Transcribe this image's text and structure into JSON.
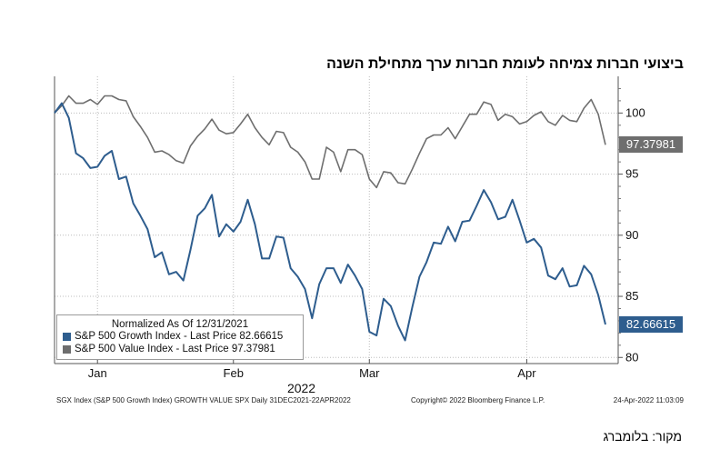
{
  "title": "ביצועי חברות צמיחה לעומת חברות ערך מתחילת השנה",
  "source": "מקור: בלומברג",
  "footer": {
    "left": "SGX Index (S&P 500 Growth Index) GROWTH VALUE SPX  Daily 31DEC2021-22APR2022",
    "center": "Copyright© 2022 Bloomberg Finance L.P.",
    "right": "24-Apr-2022 11:03:09"
  },
  "colors": {
    "growth": "#2e5d8e",
    "value": "#6e6e6e",
    "grid": "#bdbdbd"
  },
  "chart_data": {
    "type": "line",
    "xlabel": "2022",
    "ylabel": "",
    "ylim": [
      79.5,
      103
    ],
    "yticks": [
      80,
      85,
      90,
      95,
      100
    ],
    "xticks": [
      {
        "label": "Jan",
        "index": 6
      },
      {
        "label": "Feb",
        "index": 25
      },
      {
        "label": "Mar",
        "index": 44
      },
      {
        "label": "Apr",
        "index": 66
      }
    ],
    "grid": true,
    "legend": {
      "title": "Normalized As Of 12/31/2021",
      "placement": "bottom-left"
    },
    "series": [
      {
        "name": "S&P 500 Growth Index - Last Price 82.66615",
        "last": "82.66615",
        "values": [
          100,
          100.8,
          99.6,
          96.7,
          96.3,
          95.5,
          95.6,
          96.5,
          96.9,
          94.6,
          94.8,
          92.6,
          91.6,
          90.5,
          88.2,
          88.6,
          86.8,
          87.0,
          86.3,
          88.8,
          91.6,
          92.2,
          93.3,
          89.9,
          90.9,
          90.3,
          91.1,
          92.9,
          90.9,
          88.1,
          88.1,
          89.9,
          89.8,
          87.3,
          86.6,
          85.6,
          83.2,
          86.0,
          87.3,
          87.3,
          86.1,
          87.6,
          86.7,
          85.6,
          82.1,
          81.8,
          84.8,
          84.2,
          82.6,
          81.4,
          84.1,
          86.6,
          87.8,
          89.4,
          89.3,
          90.7,
          89.5,
          91.1,
          91.2,
          92.4,
          93.7,
          92.7,
          91.3,
          91.5,
          92.9,
          91.2,
          89.4,
          89.7,
          89.0,
          86.7,
          86.4,
          87.3,
          85.8,
          85.9,
          87.5,
          86.8,
          85.1,
          82.7
        ]
      },
      {
        "name": "S&P 500 Value Index - Last Price 97.37981",
        "last": "97.37981",
        "values": [
          100,
          100.6,
          101.4,
          100.8,
          100.8,
          101.1,
          100.7,
          101.4,
          101.4,
          101.1,
          101.0,
          99.7,
          98.9,
          98.0,
          96.8,
          96.9,
          96.6,
          96.1,
          95.9,
          97.3,
          98.1,
          98.7,
          99.5,
          98.6,
          98.3,
          98.4,
          99.1,
          99.9,
          98.8,
          98.0,
          97.4,
          98.5,
          98.4,
          97.2,
          96.8,
          96.0,
          94.6,
          94.6,
          97.2,
          96.8,
          95.2,
          97.0,
          97.0,
          96.6,
          94.6,
          93.9,
          95.2,
          95.1,
          94.3,
          94.2,
          95.4,
          96.7,
          97.9,
          98.2,
          98.2,
          98.8,
          97.9,
          98.9,
          99.9,
          99.9,
          100.9,
          100.7,
          99.4,
          99.9,
          99.7,
          99.1,
          99.3,
          99.8,
          100.1,
          99.3,
          99.0,
          99.8,
          99.4,
          99.3,
          100.4,
          101.1,
          99.9,
          97.4
        ]
      }
    ]
  }
}
